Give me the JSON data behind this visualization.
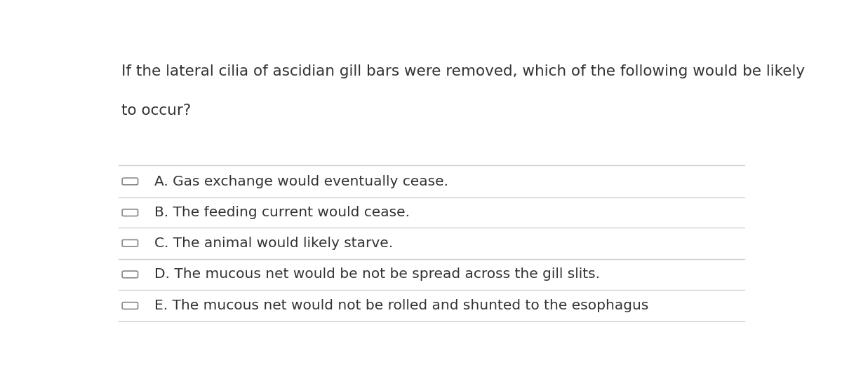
{
  "question_line1": "If the lateral cilia of ascidian gill bars were removed, which of the following would be likely",
  "question_line2": "to occur?",
  "options": [
    "A. Gas exchange would eventually cease.",
    "B. The feeding current would cease.",
    "C. The animal would likely starve.",
    "D. The mucous net would be not be spread across the gill slits.",
    "E. The mucous net would not be rolled and shunted to the esophagus"
  ],
  "background_color": "#ffffff",
  "text_color": "#333333",
  "line_color": "#cccccc",
  "checkbox_color": "#888888",
  "question_fontsize": 15.5,
  "option_fontsize": 14.5,
  "checkbox_size": 0.018
}
